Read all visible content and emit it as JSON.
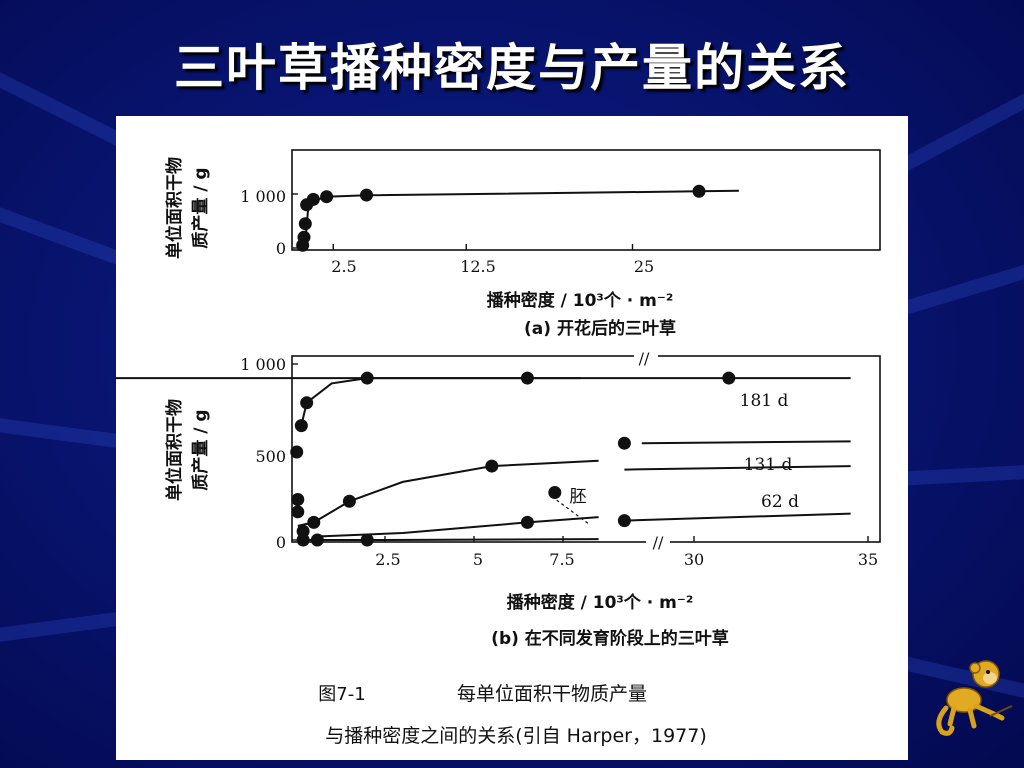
{
  "slide": {
    "title": "三叶草播种密度与产量的关系",
    "mascot_icon": "monkey-icon"
  },
  "caption": {
    "label": "图7-1",
    "line1": "每单位面积干物质产量",
    "line2": "与播种密度之间的关系(引自 Harper，1977)"
  },
  "chart_data": [
    {
      "type": "scatter",
      "panel_label": "(a) 开花后的三叶草",
      "ylabel_line1": "单位面积干物",
      "ylabel_line2": "质产量 / g",
      "xlabel": "播种密度 / 10³个 · m⁻²",
      "x_ticks": [
        "2.5",
        "12.5",
        "25"
      ],
      "y_ticks": [
        "0",
        "1 000"
      ],
      "xlim": [
        0,
        35
      ],
      "ylim": [
        0,
        1000
      ],
      "grid": false,
      "series": [
        {
          "x": [
            0.2,
            0.3,
            0.4,
            0.5,
            1.0,
            2.0,
            5.0,
            30.0
          ],
          "y": [
            50,
            200,
            450,
            800,
            900,
            950,
            980,
            1050
          ],
          "line_x": [
            0.4,
            0.6,
            1.0,
            2.0,
            5.0,
            30.0,
            33.0
          ],
          "line_y": [
            80,
            700,
            870,
            950,
            975,
            1050,
            1060
          ]
        }
      ]
    },
    {
      "type": "scatter",
      "panel_label": "(b) 在不同发育阶段上的三叶草",
      "ylabel_line1": "单位面积干物",
      "ylabel_line2": "质产量 / g",
      "xlabel": "播种密度 / 10³个 · m⁻²",
      "x_ticks": [
        "2.5",
        "5",
        "7.5",
        "30",
        "35"
      ],
      "y_ticks": [
        "0",
        "500",
        "1 000"
      ],
      "axis_break": "//",
      "ylim": [
        0,
        1000
      ],
      "grid": false,
      "annotation": "胚",
      "series": [
        {
          "name": "181 d",
          "x": [
            0.02,
            0.15,
            0.3,
            2.0,
            6.5,
            31.0
          ],
          "y": [
            500,
            650,
            780,
            920,
            920,
            920
          ]
        },
        {
          "name": "131 d",
          "x": [
            0.05,
            0.2,
            0.5,
            1.5,
            5.5,
            26.0,
            28.0
          ],
          "y": [
            230,
            50,
            100,
            220,
            420,
            270,
            550
          ]
        },
        {
          "name": "62 d",
          "x": [
            0.05,
            0.2,
            0.6,
            2.0,
            6.5,
            28.0
          ],
          "y": [
            160,
            0,
            0,
            0,
            100,
            110
          ]
        }
      ]
    }
  ]
}
